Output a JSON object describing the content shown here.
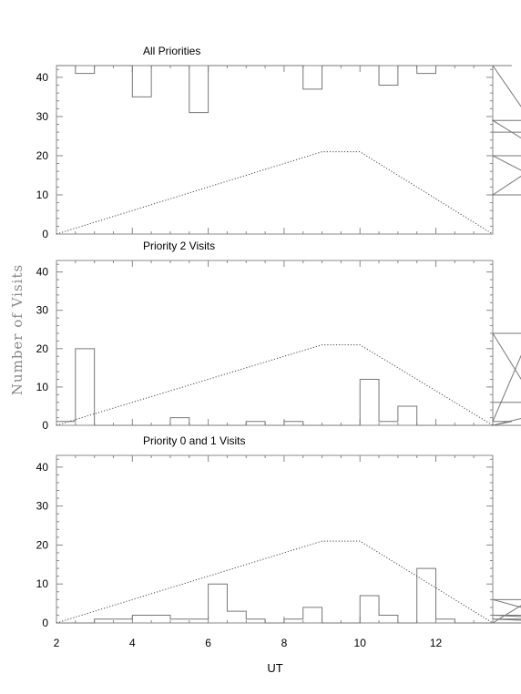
{
  "chart_data": {
    "type": "histogram-panels",
    "ylabel": "Number of Visits",
    "xlabel": "UT",
    "xlim": [
      2,
      13.5
    ],
    "ylim": [
      0,
      43
    ],
    "x_ticks": [
      2,
      4,
      6,
      8,
      10,
      12
    ],
    "y_ticks": [
      0,
      10,
      20,
      30,
      40
    ],
    "bin_width": 0.5,
    "bin_start": 2,
    "panels": [
      {
        "title": "All Priorities",
        "values": [
          43,
          41,
          43,
          43,
          35,
          43,
          43,
          31,
          43,
          43,
          43,
          43,
          43,
          37,
          43,
          43,
          43,
          38,
          43,
          41,
          43,
          43,
          43,
          43,
          43,
          29,
          20,
          10,
          26
        ]
      },
      {
        "title": "Priority 2 Visits",
        "values": [
          1,
          20,
          0,
          0,
          0,
          0,
          2,
          0,
          0,
          0,
          1,
          0,
          1,
          0,
          0,
          0,
          12,
          1,
          5,
          0,
          0,
          0,
          0,
          0,
          1,
          24,
          0,
          0,
          6
        ]
      },
      {
        "title": "Priority 0 and 1 Visits",
        "values": [
          0,
          0,
          1,
          1,
          2,
          2,
          1,
          1,
          10,
          3,
          1,
          0,
          1,
          4,
          0,
          0,
          7,
          2,
          0,
          14,
          1,
          0,
          0,
          0,
          0,
          6,
          2,
          1,
          0
        ]
      }
    ],
    "reference_line": {
      "style": "dotted",
      "x": [
        2,
        9,
        10,
        13.5
      ],
      "y": [
        0,
        21,
        21,
        0
      ]
    }
  }
}
